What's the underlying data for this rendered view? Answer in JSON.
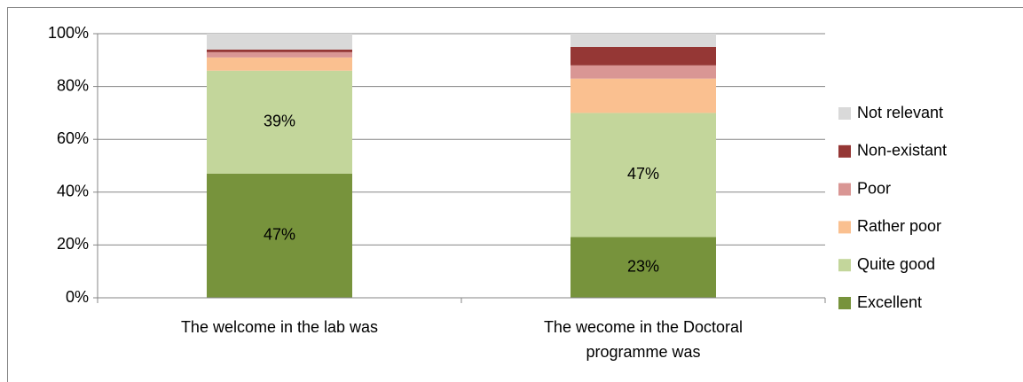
{
  "chart_data": {
    "type": "stacked_bar",
    "categories": [
      "The welcome in the lab was",
      "The wecome in the Doctoral programme was"
    ],
    "series": [
      {
        "name": "Excellent",
        "color": "#77933c",
        "values": [
          47,
          23
        ],
        "value_labels": [
          "47%",
          "23%"
        ]
      },
      {
        "name": "Quite good",
        "color": "#c3d69b",
        "values": [
          39,
          47
        ],
        "value_labels": [
          "39%",
          "47%"
        ]
      },
      {
        "name": "Rather poor",
        "color": "#fac090",
        "values": [
          5,
          13
        ],
        "value_labels": [
          null,
          null
        ]
      },
      {
        "name": "Poor",
        "color": "#d99694",
        "values": [
          2,
          5
        ],
        "value_labels": [
          null,
          null
        ]
      },
      {
        "name": "Non-existant",
        "color": "#953735",
        "values": [
          1,
          7
        ],
        "value_labels": [
          null,
          null
        ]
      },
      {
        "name": "Not relevant",
        "color": "#d9d9d9",
        "values": [
          6,
          5
        ],
        "value_labels": [
          null,
          null
        ]
      }
    ],
    "ylim": [
      0,
      100
    ],
    "yticks": [
      {
        "value": 0,
        "label": "0%"
      },
      {
        "value": 20,
        "label": "20%"
      },
      {
        "value": 40,
        "label": "40%"
      },
      {
        "value": 60,
        "label": "60%"
      },
      {
        "value": 80,
        "label": "80%"
      },
      {
        "value": 100,
        "label": "100%"
      }
    ],
    "grid": true,
    "legend": "right"
  }
}
